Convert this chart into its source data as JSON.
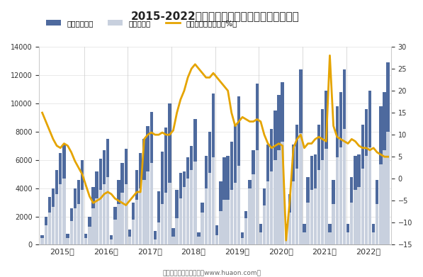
{
  "title": "2015-2022年浙江省房地产投资额及住宅投资额",
  "footer": "制图：华经产业研究院（www.huaon.com）",
  "legend": [
    "房地产投资额",
    "住宅投资额",
    "房地产投资额增速（%）"
  ],
  "bar_color_re": "#4e6a9e",
  "bar_color_house": "#c8d0de",
  "line_color": "#e5a400",
  "ylim_left": [
    0,
    14000
  ],
  "ylim_right": [
    -15,
    30
  ],
  "yticks_left": [
    0,
    2000,
    4000,
    6000,
    8000,
    10000,
    12000,
    14000
  ],
  "yticks_right": [
    -15,
    -10,
    -5,
    0,
    5,
    10,
    15,
    20,
    25,
    30
  ],
  "months": 12,
  "years": [
    2015,
    2016,
    2017,
    2018,
    2019,
    2020,
    2021,
    2022
  ],
  "real_estate": [
    700,
    2000,
    3400,
    4000,
    5300,
    6500,
    7100,
    800,
    2600,
    4000,
    4600,
    6000,
    800,
    2000,
    4100,
    5200,
    6100,
    6700,
    7500,
    700,
    2700,
    4600,
    5800,
    6800,
    1100,
    3000,
    5300,
    6500,
    7500,
    8400,
    9400,
    1000,
    3800,
    6600,
    8300,
    10000,
    1200,
    3900,
    5100,
    5200,
    6200,
    7000,
    8900,
    900,
    3000,
    6300,
    8000,
    10700,
    1400,
    4500,
    6200,
    6300,
    7300,
    8500,
    10500,
    900,
    2400,
    4600,
    6700,
    11400,
    1500,
    4000,
    7100,
    8200,
    9500,
    10600,
    11500,
    1500,
    3600,
    7100,
    8500,
    12400,
    1500,
    4800,
    6300,
    6400,
    8500,
    9600,
    10900,
    1500,
    4600,
    9800,
    10800,
    12400,
    1500,
    4800,
    6300,
    6400,
    8500,
    9600,
    10900,
    1500,
    4600,
    9800,
    10800,
    12900
  ],
  "housing": [
    500,
    1400,
    2300,
    2700,
    3600,
    4300,
    4700,
    500,
    1700,
    2600,
    2900,
    3900,
    500,
    1300,
    2600,
    3300,
    3900,
    4300,
    4800,
    400,
    1800,
    2900,
    3700,
    4300,
    600,
    1800,
    3200,
    4000,
    4600,
    5200,
    5800,
    400,
    1600,
    2900,
    3700,
    4400,
    600,
    1900,
    3300,
    4100,
    4700,
    5300,
    5900,
    600,
    2300,
    4000,
    5100,
    6200,
    700,
    2400,
    3200,
    3200,
    3900,
    4400,
    5600,
    500,
    1900,
    4000,
    5000,
    6700,
    900,
    2800,
    4500,
    5200,
    6000,
    6700,
    7300,
    900,
    2300,
    4500,
    5400,
    7900,
    900,
    3000,
    3900,
    4000,
    5300,
    6000,
    6800,
    900,
    2900,
    6200,
    6900,
    8200,
    900,
    3000,
    3900,
    4100,
    5400,
    6300,
    6900,
    900,
    2900,
    5700,
    6700,
    8000
  ],
  "growth_rate": [
    15,
    13,
    11,
    9,
    7.5,
    7,
    8,
    7.5,
    6,
    4,
    2.5,
    1,
    -1.5,
    -4,
    -5.5,
    -5,
    -4.5,
    -3.5,
    -3,
    -3.5,
    -4.5,
    -5,
    -5.5,
    -6,
    -5,
    -4,
    -3,
    -3,
    9,
    10,
    10.5,
    10,
    10,
    10.5,
    10,
    10,
    11,
    15,
    18,
    20,
    23,
    25,
    26,
    25,
    24,
    23,
    23,
    24,
    23,
    22,
    21,
    20,
    15,
    12,
    13,
    14,
    13.5,
    13,
    13,
    13.5,
    13,
    10,
    8,
    7,
    7.5,
    8,
    7.5,
    -14,
    -5,
    7,
    9,
    10,
    7,
    8,
    8,
    9,
    9.5,
    9,
    8.5,
    28,
    12,
    9.5,
    9,
    8.5,
    8,
    9,
    8.5,
    7.5,
    7,
    7,
    6.5,
    7,
    6,
    5.5,
    5,
    5
  ],
  "background_color": "#ffffff",
  "grid_color": "#e0e0e0"
}
